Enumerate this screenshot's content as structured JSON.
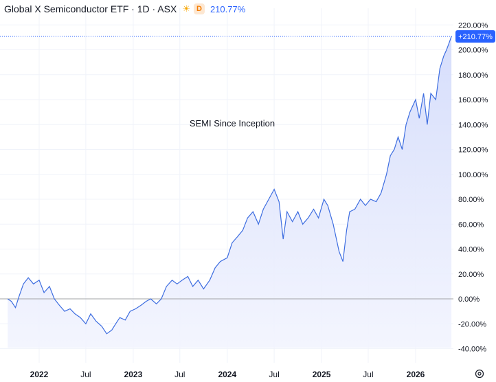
{
  "header": {
    "title": "Global X Semiconductor ETF · 1D · ASX",
    "session_icon": "sun-icon",
    "delay_badge": "D",
    "change": "210.77%"
  },
  "colors": {
    "line": "#3d6de0",
    "fill_top": "#d4dcfb",
    "fill_bottom": "#f2f4fe",
    "last_badge": "#2962ff",
    "grid": "#f0f3fa",
    "baseline": "#888888"
  },
  "chart_data": {
    "type": "area",
    "annotation": "SEMI Since Inception",
    "y_ticks": [
      "220.00%",
      "200.00%",
      "180.00%",
      "160.00%",
      "140.00%",
      "120.00%",
      "100.00%",
      "80.00%",
      "60.00%",
      "40.00%",
      "20.00%",
      "0.00%",
      "-20.00%",
      "-40.00%"
    ],
    "y_tick_values": [
      220,
      200,
      180,
      160,
      140,
      120,
      100,
      80,
      60,
      40,
      20,
      0,
      -20,
      -40
    ],
    "x_ticks": [
      {
        "label": "2022",
        "date": "2022-01-01",
        "bold": true
      },
      {
        "label": "Jul",
        "date": "2022-07-01",
        "bold": false
      },
      {
        "label": "2023",
        "date": "2023-01-01",
        "bold": true
      },
      {
        "label": "Jul",
        "date": "2023-07-01",
        "bold": false
      },
      {
        "label": "2024",
        "date": "2024-01-01",
        "bold": true
      },
      {
        "label": "Jul",
        "date": "2024-07-01",
        "bold": false
      },
      {
        "label": "2025",
        "date": "2025-01-01",
        "bold": true
      },
      {
        "label": "Jul",
        "date": "2025-07-01",
        "bold": false
      },
      {
        "label": "2026",
        "date": "2026-01-01",
        "bold": true
      }
    ],
    "last_value_label": "+210.77%",
    "last_value": 210.77,
    "ylim": [
      -40,
      220
    ],
    "series": [
      {
        "x": [
          "2021-09-01",
          "2021-09-15",
          "2021-10-01",
          "2021-10-15",
          "2021-11-01",
          "2021-11-20",
          "2021-12-10",
          "2022-01-01",
          "2022-01-20",
          "2022-02-10",
          "2022-03-01",
          "2022-03-20",
          "2022-04-10",
          "2022-05-01",
          "2022-05-20",
          "2022-06-10",
          "2022-07-01",
          "2022-07-20",
          "2022-08-10",
          "2022-09-01",
          "2022-09-20",
          "2022-10-10",
          "2022-10-25",
          "2022-11-10",
          "2022-12-01",
          "2022-12-20",
          "2023-01-10",
          "2023-02-01",
          "2023-02-20",
          "2023-03-10",
          "2023-04-01",
          "2023-04-20",
          "2023-05-10",
          "2023-06-01",
          "2023-06-20",
          "2023-07-10",
          "2023-08-01",
          "2023-08-20",
          "2023-09-10",
          "2023-10-01",
          "2023-10-25",
          "2023-11-15",
          "2023-12-05",
          "2024-01-01",
          "2024-01-20",
          "2024-02-10",
          "2024-03-01",
          "2024-03-20",
          "2024-04-10",
          "2024-05-01",
          "2024-05-20",
          "2024-06-10",
          "2024-07-01",
          "2024-07-20",
          "2024-08-05",
          "2024-08-20",
          "2024-09-10",
          "2024-10-01",
          "2024-10-20",
          "2024-11-10",
          "2024-12-01",
          "2024-12-20",
          "2025-01-10",
          "2025-01-25",
          "2025-02-15",
          "2025-03-10",
          "2025-03-25",
          "2025-04-08",
          "2025-04-20",
          "2025-05-10",
          "2025-06-01",
          "2025-06-20",
          "2025-07-10",
          "2025-08-01",
          "2025-08-20",
          "2025-09-10",
          "2025-09-25",
          "2025-10-10",
          "2025-10-25",
          "2025-11-10",
          "2025-11-25",
          "2025-12-10",
          "2026-01-01",
          "2026-01-15",
          "2026-02-01",
          "2026-02-15",
          "2026-03-01",
          "2026-03-20",
          "2026-04-05",
          "2026-04-20",
          "2026-05-01",
          "2026-05-10",
          "2026-05-20"
        ],
        "values": [
          0,
          -2,
          -7,
          2,
          12,
          17,
          12,
          15,
          5,
          10,
          0,
          -5,
          -10,
          -8,
          -12,
          -15,
          -20,
          -12,
          -18,
          -22,
          -28,
          -25,
          -20,
          -15,
          -17,
          -10,
          -8,
          -5,
          -2,
          0,
          -4,
          0,
          10,
          15,
          12,
          15,
          18,
          10,
          15,
          8,
          15,
          25,
          30,
          33,
          45,
          50,
          55,
          65,
          70,
          60,
          72,
          80,
          88,
          78,
          48,
          70,
          62,
          70,
          60,
          65,
          72,
          65,
          80,
          75,
          60,
          38,
          30,
          55,
          70,
          72,
          80,
          75,
          80,
          78,
          85,
          100,
          115,
          120,
          130,
          120,
          140,
          150,
          160,
          145,
          165,
          140,
          165,
          160,
          185,
          195,
          200,
          205,
          210.77
        ]
      }
    ]
  }
}
